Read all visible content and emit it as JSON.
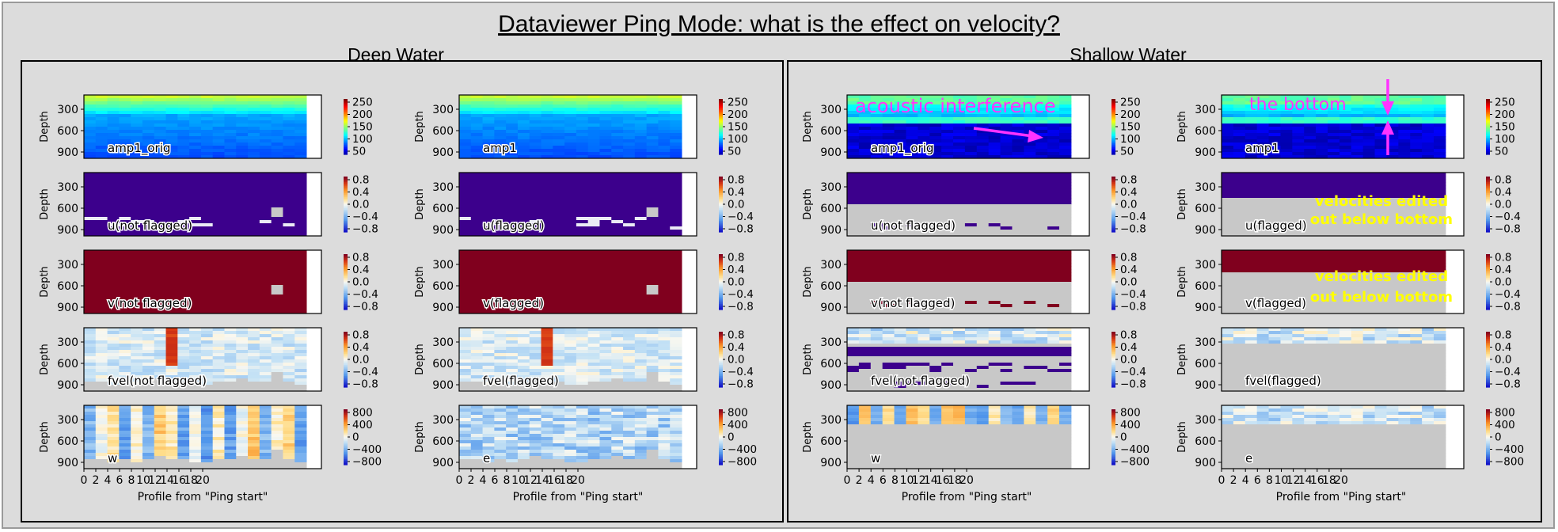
{
  "title": "Dataviewer Ping Mode: what is the effect on velocity?",
  "sections": {
    "deep": "Deep Water",
    "shallow": "Shallow Water"
  },
  "annotations": {
    "acoustic": "acoustic interference",
    "bottom": "the bottom",
    "edited": "velocities edited out below bottom"
  },
  "colors": {
    "annotation_magenta": "#ff33ff",
    "annotation_yellow": "#ffff00",
    "nodata_gray": "#c8c8c8"
  },
  "chart_data": {
    "type": "heatmap",
    "xlabel": "Profile from \"Ping start\"",
    "ylabel": "Depth",
    "xticks": [
      "0",
      "2",
      "4",
      "6",
      "8",
      "10",
      "12",
      "14",
      "16",
      "18",
      "20"
    ],
    "yticks": [
      "300",
      "600",
      "900"
    ],
    "colorbars": {
      "amp": [
        "250",
        "200",
        "150",
        "100",
        "50"
      ],
      "vel": [
        "0.8",
        "0.4",
        "0.0",
        "−0.4",
        "−0.8"
      ],
      "w": [
        "800",
        "400",
        "0",
        "−400",
        "−800"
      ]
    },
    "panels": [
      {
        "id": "deep-amp1-orig",
        "label": "amp1_orig",
        "type": "amp",
        "colorbar": "amp",
        "col": 0,
        "row": 0
      },
      {
        "id": "deep-amp1",
        "label": "amp1",
        "type": "amp",
        "colorbar": "amp",
        "col": 1,
        "row": 0
      },
      {
        "id": "shallow-amp1-orig",
        "label": "amp1_orig",
        "type": "amp_shallow",
        "colorbar": "amp",
        "col": 2,
        "row": 0
      },
      {
        "id": "shallow-amp1",
        "label": "amp1",
        "type": "amp_shallow",
        "colorbar": "amp",
        "col": 3,
        "row": 0
      },
      {
        "id": "deep-u-notflagged",
        "label": "u(not flagged)",
        "type": "u",
        "colorbar": "vel",
        "col": 0,
        "row": 1
      },
      {
        "id": "deep-u-flagged",
        "label": "u(flagged)",
        "type": "u",
        "colorbar": "vel",
        "col": 1,
        "row": 1
      },
      {
        "id": "shallow-u-notflagged",
        "label": "u(not flagged)",
        "type": "u_shallow",
        "colorbar": "vel",
        "col": 2,
        "row": 1
      },
      {
        "id": "shallow-u-flagged",
        "label": "u(flagged)",
        "type": "u_flag",
        "colorbar": "vel",
        "col": 3,
        "row": 1
      },
      {
        "id": "deep-v-notflagged",
        "label": "v(not flagged)",
        "type": "v",
        "colorbar": "vel",
        "col": 0,
        "row": 2
      },
      {
        "id": "deep-v-flagged",
        "label": "v(flagged)",
        "type": "v",
        "colorbar": "vel",
        "col": 1,
        "row": 2
      },
      {
        "id": "shallow-v-notflagged",
        "label": "v(not flagged)",
        "type": "v_shallow",
        "colorbar": "vel",
        "col": 2,
        "row": 2
      },
      {
        "id": "shallow-v-flagged",
        "label": "v(flagged)",
        "type": "v_flag",
        "colorbar": "vel",
        "col": 3,
        "row": 2
      },
      {
        "id": "deep-fvel-notflagged",
        "label": "fvel(not flagged)",
        "type": "fvel",
        "colorbar": "vel",
        "col": 0,
        "row": 3
      },
      {
        "id": "deep-fvel-flagged",
        "label": "fvel(flagged)",
        "type": "fvel",
        "colorbar": "vel",
        "col": 1,
        "row": 3
      },
      {
        "id": "shallow-fvel-notflagged",
        "label": "fvel(not flagged)",
        "type": "fvel_shallow",
        "colorbar": "vel",
        "col": 2,
        "row": 3
      },
      {
        "id": "shallow-fvel-flagged",
        "label": "fvel(flagged)",
        "type": "fvel_flag",
        "colorbar": "vel",
        "col": 3,
        "row": 3
      },
      {
        "id": "deep-w",
        "label": "w",
        "type": "w",
        "colorbar": "w",
        "col": 0,
        "row": 4
      },
      {
        "id": "deep-e",
        "label": "e",
        "type": "e",
        "colorbar": "w",
        "col": 1,
        "row": 4
      },
      {
        "id": "shallow-w",
        "label": "w",
        "type": "w_shallow",
        "colorbar": "w",
        "col": 2,
        "row": 4
      },
      {
        "id": "shallow-e",
        "label": "e",
        "type": "e_shallow",
        "colorbar": "w",
        "col": 3,
        "row": 4
      }
    ]
  }
}
